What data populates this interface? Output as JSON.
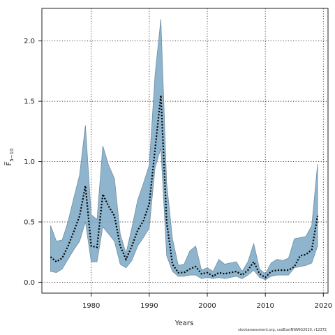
{
  "chart_data": {
    "type": "area",
    "xlabel": "Years",
    "ylabel": "F̅",
    "ylabel_sub": "5−10",
    "xlim": [
      1971.5,
      2020.8
    ],
    "ylim": [
      -0.09,
      2.27
    ],
    "xticks": [
      1980,
      1990,
      2000,
      2010,
      2020
    ],
    "yticks": [
      0.0,
      0.5,
      1.0,
      1.5,
      2.0
    ],
    "ytick_labels": [
      "0.0",
      "0.5",
      "1.0",
      "1.5",
      "2.0"
    ],
    "grid": true,
    "x": [
      1973,
      1974,
      1975,
      1976,
      1977,
      1978,
      1979,
      1980,
      1981,
      1982,
      1983,
      1984,
      1985,
      1986,
      1987,
      1988,
      1989,
      1990,
      1991,
      1992,
      1993,
      1994,
      1995,
      1996,
      1997,
      1998,
      1999,
      2000,
      2001,
      2002,
      2003,
      2004,
      2005,
      2006,
      2007,
      2008,
      2009,
      2010,
      2011,
      2012,
      2013,
      2014,
      2015,
      2016,
      2017,
      2018,
      2019
    ],
    "series": [
      {
        "estimate": [
          0.21,
          0.17,
          0.2,
          0.3,
          0.42,
          0.55,
          0.8,
          0.3,
          0.29,
          0.73,
          0.63,
          0.55,
          0.3,
          0.19,
          0.3,
          0.43,
          0.51,
          0.65,
          1.1,
          1.55,
          0.5,
          0.15,
          0.08,
          0.08,
          0.11,
          0.13,
          0.07,
          0.08,
          0.05,
          0.08,
          0.07,
          0.08,
          0.09,
          0.06,
          0.1,
          0.17,
          0.07,
          0.04,
          0.09,
          0.1,
          0.1,
          0.1,
          0.13,
          0.22,
          0.23,
          0.27,
          0.55
        ],
        "upper": [
          0.47,
          0.34,
          0.35,
          0.5,
          0.7,
          0.89,
          1.3,
          0.56,
          0.52,
          1.13,
          0.97,
          0.86,
          0.4,
          0.24,
          0.45,
          0.68,
          0.82,
          0.97,
          1.72,
          2.18,
          0.82,
          0.36,
          0.14,
          0.15,
          0.26,
          0.3,
          0.1,
          0.12,
          0.09,
          0.19,
          0.15,
          0.16,
          0.17,
          0.09,
          0.17,
          0.32,
          0.11,
          0.07,
          0.16,
          0.19,
          0.18,
          0.2,
          0.36,
          0.37,
          0.38,
          0.47,
          0.98
        ],
        "lower": [
          0.09,
          0.08,
          0.11,
          0.19,
          0.27,
          0.34,
          0.5,
          0.17,
          0.17,
          0.46,
          0.4,
          0.34,
          0.15,
          0.12,
          0.18,
          0.3,
          0.37,
          0.45,
          0.95,
          1.11,
          0.22,
          0.09,
          0.05,
          0.05,
          0.06,
          0.06,
          0.03,
          0.04,
          0.03,
          0.04,
          0.03,
          0.04,
          0.05,
          0.03,
          0.06,
          0.1,
          0.04,
          0.02,
          0.05,
          0.06,
          0.06,
          0.06,
          0.12,
          0.13,
          0.14,
          0.16,
          0.3
        ]
      }
    ],
    "colors": {
      "band": "#7aa8c4",
      "band_edge": "#6f8fa3",
      "line": "#000000",
      "grid": "#333333"
    }
  },
  "footer": {
    "credit": "stockassessment.org, codEastNWWG2020, r12372"
  }
}
